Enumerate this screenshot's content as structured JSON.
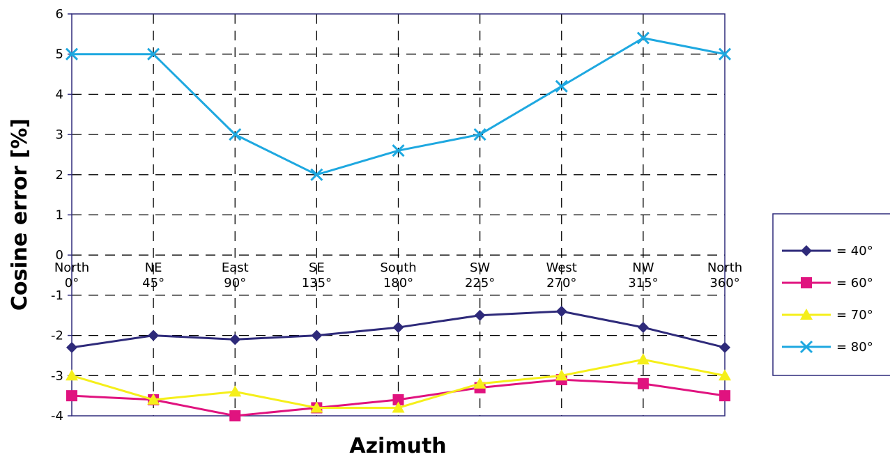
{
  "chart_data": {
    "type": "line",
    "xlabel": "Azimuth",
    "ylabel": "Cosine error [%]",
    "ylim": [
      -4,
      6
    ],
    "yticks": [
      6,
      5,
      4,
      3,
      2,
      1,
      0,
      -1,
      -2,
      -3,
      -4
    ],
    "grid": true,
    "legend_position": "right",
    "categories": [
      {
        "name": "North",
        "deg": "0°"
      },
      {
        "name": "NE",
        "deg": "45°"
      },
      {
        "name": "East",
        "deg": "90°"
      },
      {
        "name": "SE",
        "deg": "135°"
      },
      {
        "name": "South",
        "deg": "180°"
      },
      {
        "name": "SW",
        "deg": "225°"
      },
      {
        "name": "West",
        "deg": "270°"
      },
      {
        "name": "NW",
        "deg": "315°"
      },
      {
        "name": "North",
        "deg": "360°"
      }
    ],
    "series": [
      {
        "name": "= 40°",
        "color": "#2e2a7a",
        "marker": "diamond",
        "values": [
          -2.3,
          -2.0,
          -2.1,
          -2.0,
          -1.8,
          -1.5,
          -1.4,
          -1.8,
          -2.3
        ]
      },
      {
        "name": "= 60°",
        "color": "#e0137f",
        "marker": "square",
        "values": [
          -3.5,
          -3.6,
          -4.0,
          -3.8,
          -3.6,
          -3.3,
          -3.1,
          -3.2,
          -3.5
        ]
      },
      {
        "name": "= 70°",
        "color": "#f5ef1a",
        "marker": "triangle",
        "values": [
          -3.0,
          -3.6,
          -3.4,
          -3.8,
          -3.8,
          -3.2,
          -3.0,
          -2.6,
          -3.0
        ]
      },
      {
        "name": "= 80°",
        "color": "#1ea8e0",
        "marker": "x",
        "values": [
          5.0,
          5.0,
          3.0,
          2.0,
          2.6,
          3.0,
          4.2,
          5.4,
          5.0
        ]
      }
    ]
  }
}
